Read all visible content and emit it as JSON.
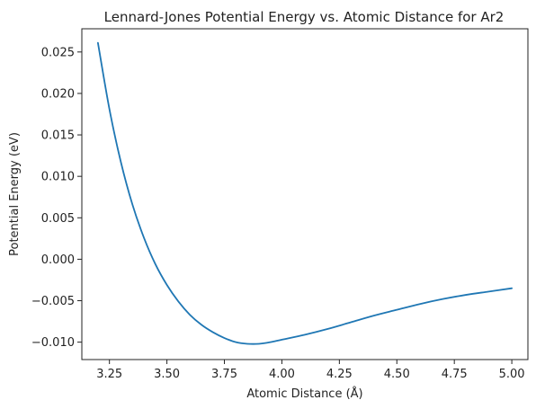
{
  "chart_data": {
    "type": "line",
    "title": "Lennard-Jones Potential Energy vs. Atomic Distance for Ar2",
    "xlabel": "Atomic Distance (Å)",
    "ylabel": "Potential Energy (eV)",
    "xlim": [
      3.13,
      5.07
    ],
    "ylim": [
      -0.0121,
      0.0278
    ],
    "xticks": [
      3.25,
      3.5,
      3.75,
      4.0,
      4.25,
      4.5,
      4.75,
      5.0
    ],
    "xtick_labels": [
      "3.25",
      "3.50",
      "3.75",
      "4.00",
      "4.25",
      "4.50",
      "4.75",
      "5.00"
    ],
    "yticks": [
      -0.01,
      -0.005,
      0.0,
      0.005,
      0.01,
      0.015,
      0.02,
      0.025
    ],
    "ytick_labels": [
      "−0.010",
      "−0.005",
      "0.000",
      "0.005",
      "0.010",
      "0.015",
      "0.020",
      "0.025"
    ],
    "grid": false,
    "series": [
      {
        "color": "#1f77b4",
        "x": [
          3.2,
          3.25,
          3.3,
          3.35,
          3.4,
          3.45,
          3.5,
          3.55,
          3.6,
          3.65,
          3.7,
          3.75,
          3.8,
          3.85,
          3.9,
          3.95,
          4.0,
          4.1,
          4.2,
          4.3,
          4.4,
          4.5,
          4.6,
          4.7,
          4.8,
          4.9,
          5.0
        ],
        "y": [
          0.0261,
          0.0181,
          0.0117,
          0.0066,
          0.0026,
          -0.0006,
          -0.0031,
          -0.0051,
          -0.0067,
          -0.0079,
          -0.0088,
          -0.0095,
          -0.01,
          -0.0102,
          -0.0102,
          -0.01,
          -0.0097,
          -0.0091,
          -0.0084,
          -0.0076,
          -0.0068,
          -0.0061,
          -0.0054,
          -0.0048,
          -0.0043,
          -0.0039,
          -0.0035
        ]
      }
    ]
  }
}
